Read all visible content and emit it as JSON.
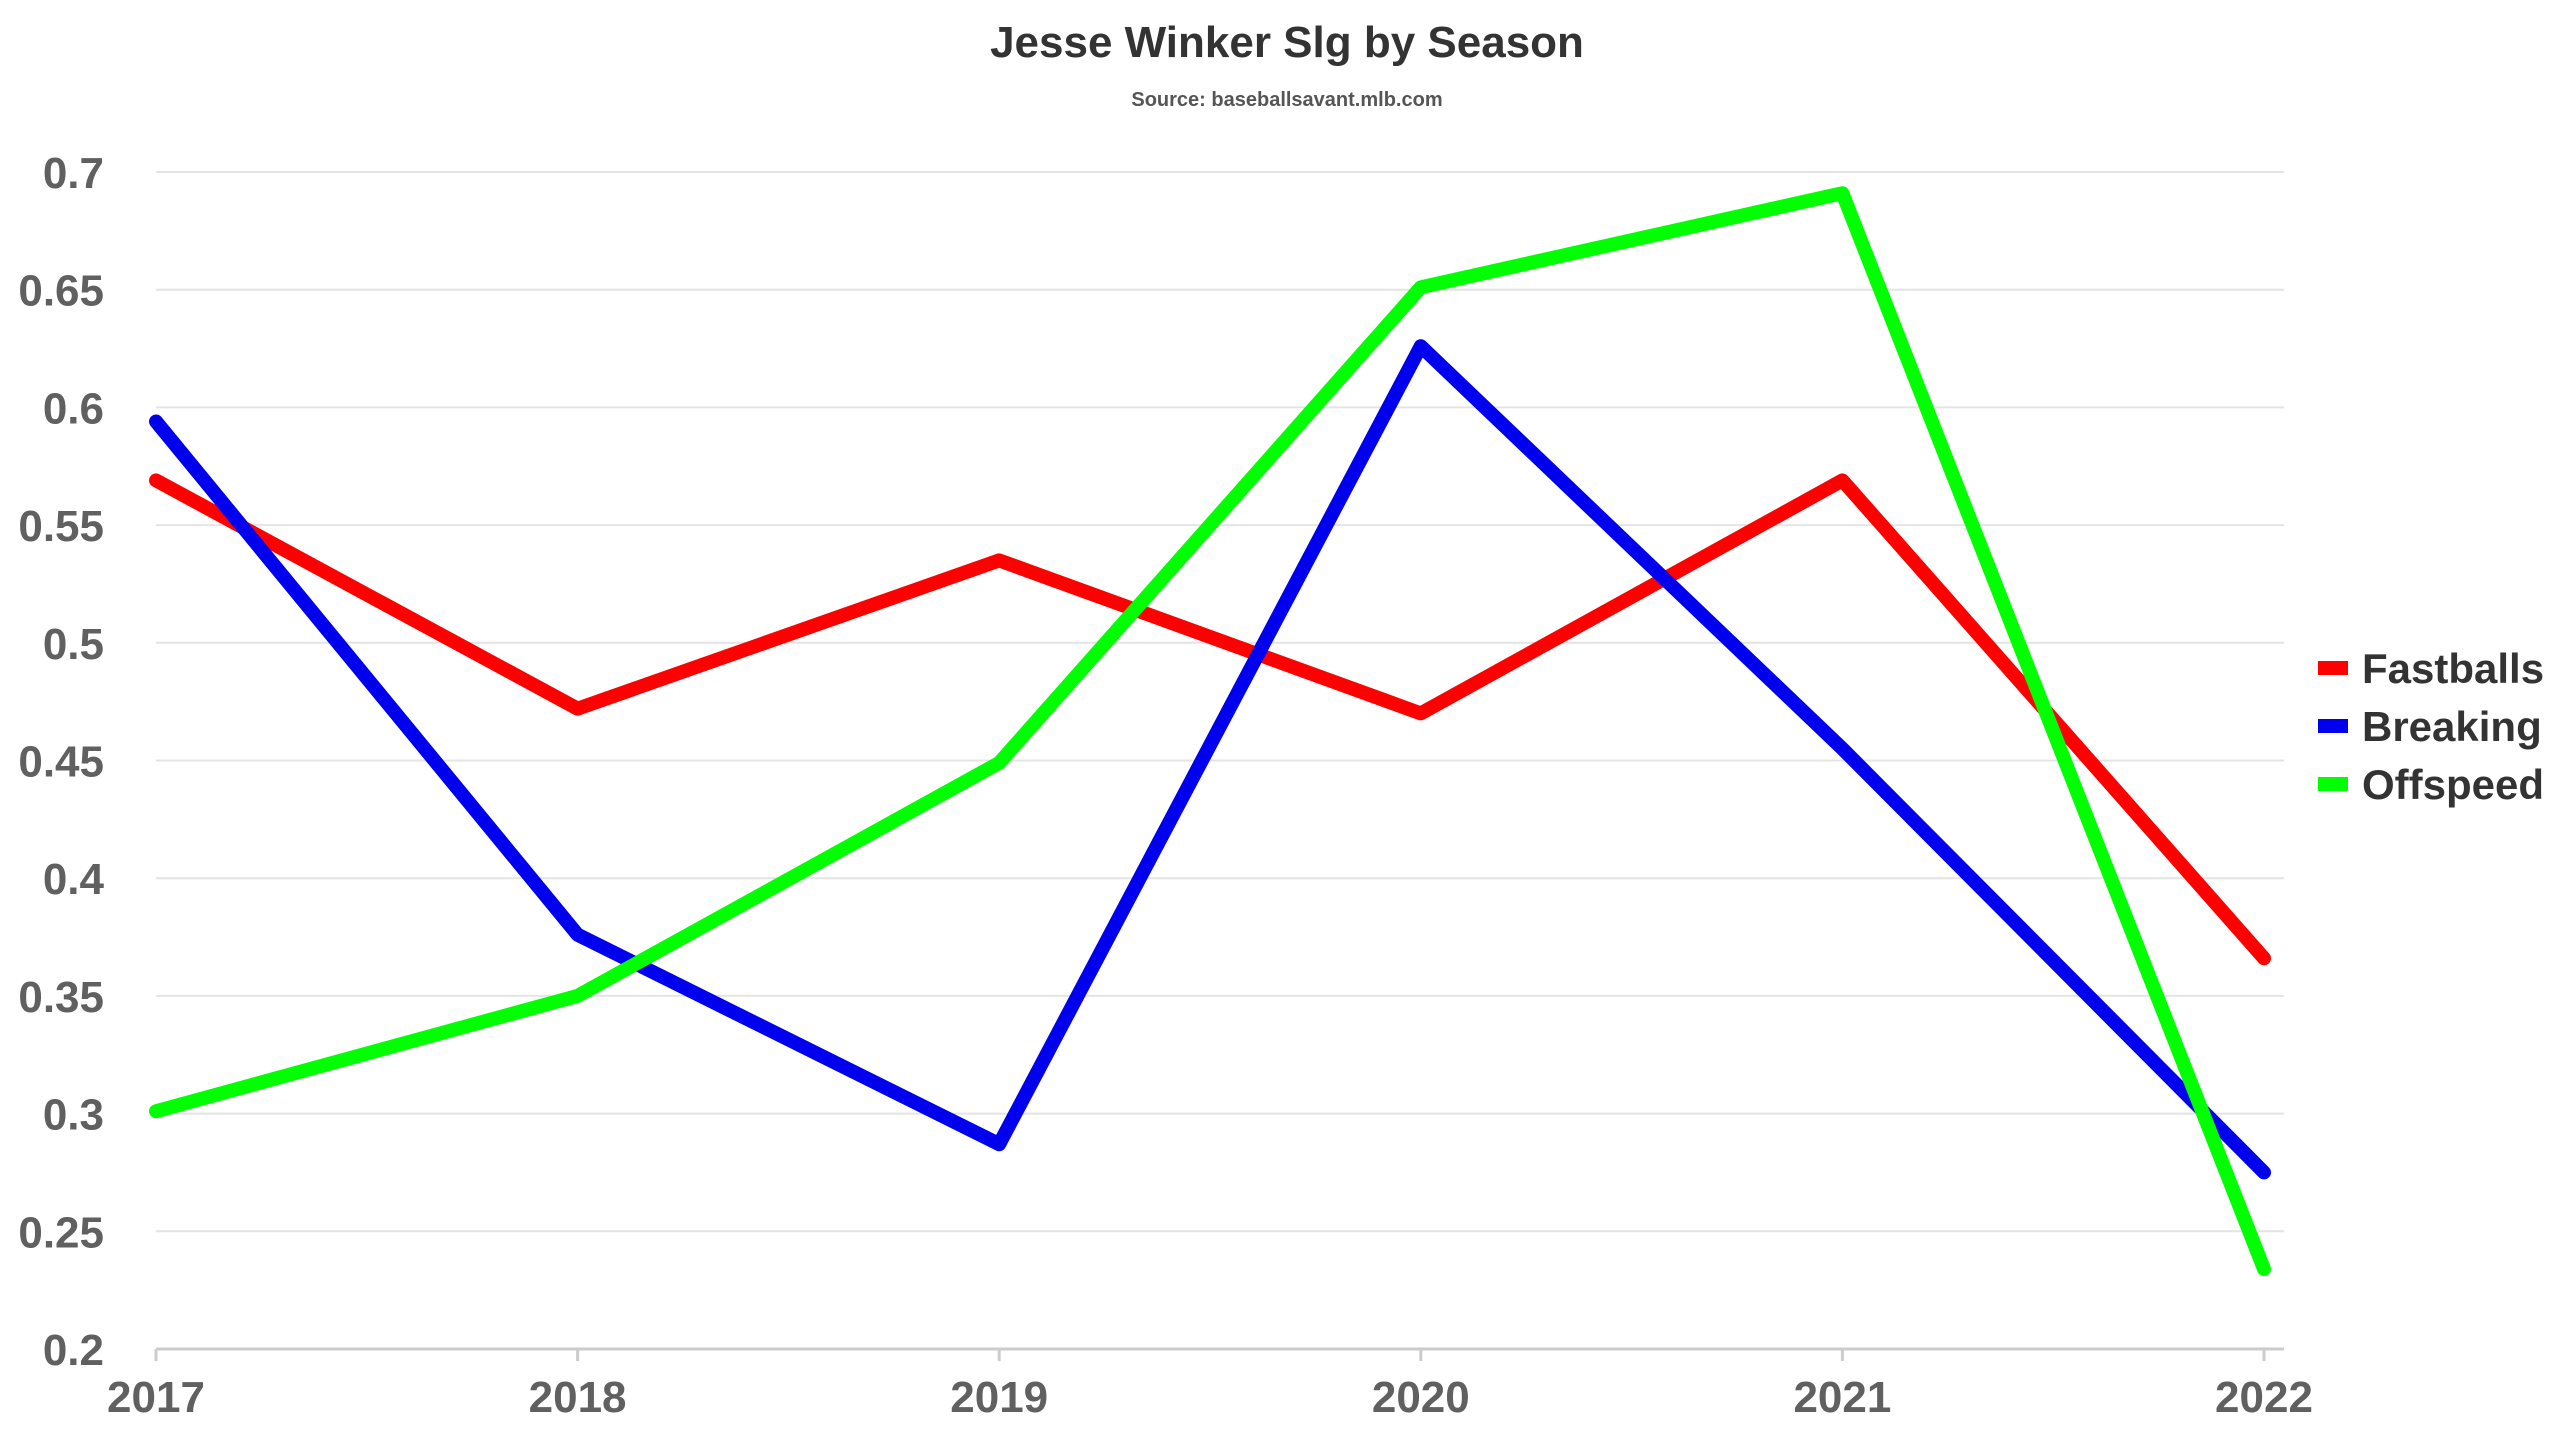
{
  "chart_data": {
    "type": "line",
    "title": "Jesse Winker Slg by Season",
    "subtitle": "Source: baseballsavant.mlb.com",
    "xlabel": "",
    "ylabel": "",
    "x": [
      "2017",
      "2018",
      "2019",
      "2020",
      "2021",
      "2022"
    ],
    "y_ticks": [
      "0.2",
      "0.25",
      "0.3",
      "0.35",
      "0.4",
      "0.45",
      "0.5",
      "0.55",
      "0.6",
      "0.65",
      "0.7"
    ],
    "ylim": [
      0.2,
      0.7
    ],
    "grid": true,
    "legend_position": "right",
    "series": [
      {
        "name": "Fastballs",
        "color": "#ff0000",
        "values": [
          0.569,
          0.472,
          0.535,
          0.47,
          0.569,
          0.366
        ]
      },
      {
        "name": "Breaking",
        "color": "#0000ee",
        "values": [
          0.594,
          0.376,
          0.287,
          0.626,
          0.455,
          0.275
        ]
      },
      {
        "name": "Offspeed",
        "color": "#00ff00",
        "values": [
          0.301,
          0.35,
          0.449,
          0.651,
          0.691,
          0.234
        ]
      }
    ]
  }
}
